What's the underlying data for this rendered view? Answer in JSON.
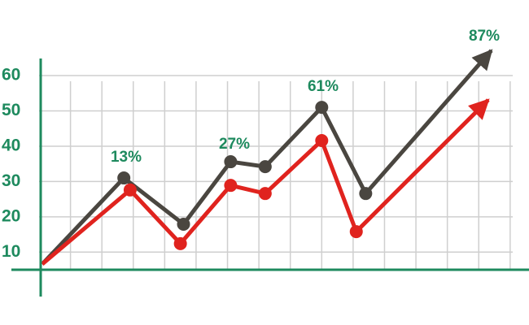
{
  "chart_data": {
    "type": "line",
    "xlim": [
      0,
      15.6
    ],
    "xticks": [
      1,
      2,
      3,
      4,
      5,
      6,
      7,
      8,
      9,
      10,
      11,
      12,
      13,
      14,
      15
    ],
    "ylim": [
      5,
      70
    ],
    "yticks": [
      10,
      20,
      30,
      40,
      50,
      60
    ],
    "grid": true,
    "axis_color": "#1e8a5e",
    "series": [
      {
        "color": "#4a4640",
        "x": [
          0.1,
          2.7,
          4.6,
          6.1,
          7.2,
          9.0,
          10.4,
          14.4
        ],
        "values": [
          6.6,
          31.0,
          17.9,
          35.6,
          34.2,
          51.0,
          26.6,
          67.1
        ]
      },
      {
        "color": "#e0231e",
        "x": [
          0.1,
          2.9,
          4.5,
          6.1,
          7.2,
          9.0,
          10.1,
          14.3
        ],
        "values": [
          6.6,
          27.6,
          12.4,
          28.9,
          26.6,
          41.6,
          15.8,
          53.1
        ]
      }
    ],
    "annotations": [
      "13%",
      "27%",
      "61%",
      "87%"
    ]
  }
}
